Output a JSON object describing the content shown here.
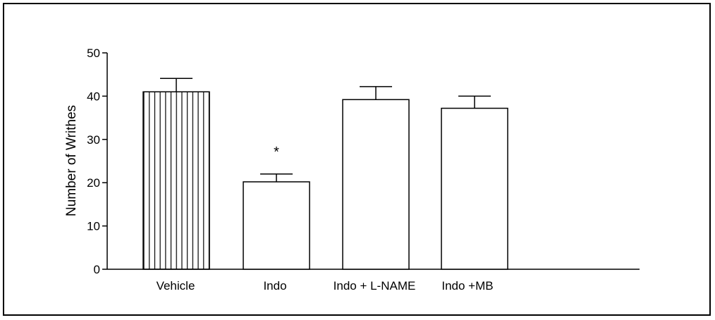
{
  "chart_data": {
    "type": "bar",
    "categories": [
      "Vehicle",
      "Indo",
      "Indo + L-NAME",
      "Indo +MB"
    ],
    "values": [
      41,
      20.2,
      39.2,
      37.2
    ],
    "errors": [
      3.1,
      1.8,
      3.0,
      2.8
    ],
    "annotations": [
      "",
      "*",
      "",
      ""
    ],
    "patterns": [
      "vertical-hatch",
      "none",
      "none",
      "none"
    ],
    "title": "",
    "xlabel": "",
    "ylabel": "Number of Writhes",
    "ylim": [
      0,
      50
    ],
    "yticks": [
      0,
      10,
      20,
      30,
      40,
      50
    ],
    "grid": false,
    "colors": {
      "bar_fill": "#ffffff",
      "stroke": "#000000"
    }
  }
}
